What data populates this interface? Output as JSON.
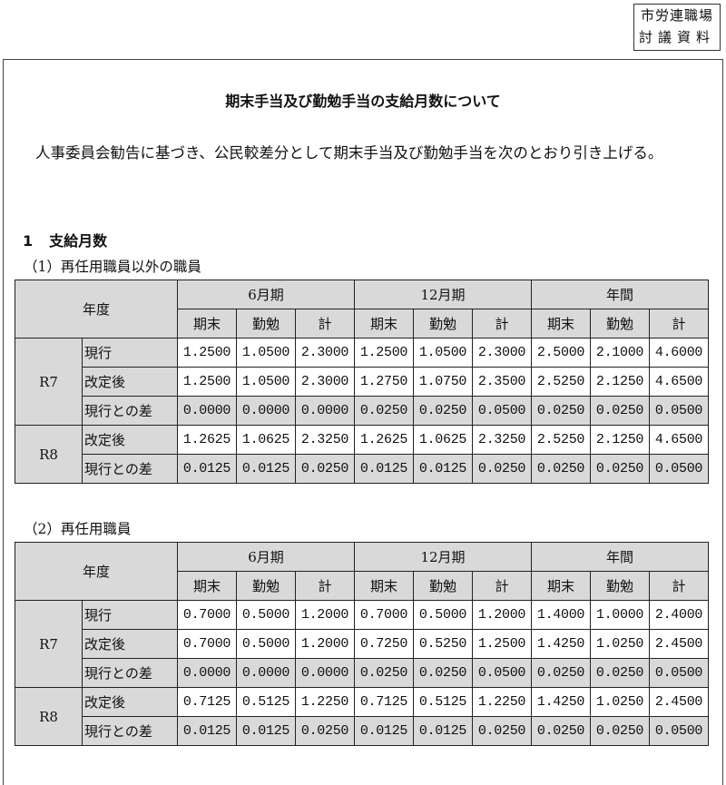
{
  "stamp": {
    "line1": "市労連職場",
    "line2": "討議資料"
  },
  "title": "期末手当及び勤勉手当の支給月数について",
  "paragraph": "人事委員会勧告に基づき、公民較差分として期末手当及び勤勉手当を次のとおり引き上げる。",
  "section": {
    "number": "1",
    "label": "支給月数"
  },
  "header": {
    "year": "年度",
    "periods": [
      "6月期",
      "12月期",
      "年間"
    ],
    "subcols": [
      "期末",
      "勤勉",
      "計"
    ]
  },
  "tables": [
    {
      "caption": "（1）再任用職員以外の職員",
      "groups": [
        {
          "year": "R7",
          "rows": [
            {
              "label": "現行",
              "shaded": false,
              "values": [
                "1.2500",
                "1.0500",
                "2.3000",
                "1.2500",
                "1.0500",
                "2.3000",
                "2.5000",
                "2.1000",
                "4.6000"
              ]
            },
            {
              "label": "改定後",
              "shaded": false,
              "values": [
                "1.2500",
                "1.0500",
                "2.3000",
                "1.2750",
                "1.0750",
                "2.3500",
                "2.5250",
                "2.1250",
                "4.6500"
              ]
            },
            {
              "label": "現行との差",
              "shaded": true,
              "values": [
                "0.0000",
                "0.0000",
                "0.0000",
                "0.0250",
                "0.0250",
                "0.0500",
                "0.0250",
                "0.0250",
                "0.0500"
              ]
            }
          ]
        },
        {
          "year": "R8",
          "rows": [
            {
              "label": "改定後",
              "shaded": false,
              "values": [
                "1.2625",
                "1.0625",
                "2.3250",
                "1.2625",
                "1.0625",
                "2.3250",
                "2.5250",
                "2.1250",
                "4.6500"
              ]
            },
            {
              "label": "現行との差",
              "shaded": true,
              "values": [
                "0.0125",
                "0.0125",
                "0.0250",
                "0.0125",
                "0.0125",
                "0.0250",
                "0.0250",
                "0.0250",
                "0.0500"
              ]
            }
          ]
        }
      ]
    },
    {
      "caption": "（2）再任用職員",
      "groups": [
        {
          "year": "R7",
          "rows": [
            {
              "label": "現行",
              "shaded": false,
              "values": [
                "0.7000",
                "0.5000",
                "1.2000",
                "0.7000",
                "0.5000",
                "1.2000",
                "1.4000",
                "1.0000",
                "2.4000"
              ]
            },
            {
              "label": "改定後",
              "shaded": false,
              "values": [
                "0.7000",
                "0.5000",
                "1.2000",
                "0.7250",
                "0.5250",
                "1.2500",
                "1.4250",
                "1.0250",
                "2.4500"
              ]
            },
            {
              "label": "現行との差",
              "shaded": true,
              "values": [
                "0.0000",
                "0.0000",
                "0.0000",
                "0.0250",
                "0.0250",
                "0.0500",
                "0.0250",
                "0.0250",
                "0.0500"
              ]
            }
          ]
        },
        {
          "year": "R8",
          "rows": [
            {
              "label": "改定後",
              "shaded": false,
              "values": [
                "0.7125",
                "0.5125",
                "1.2250",
                "0.7125",
                "0.5125",
                "1.2250",
                "1.4250",
                "1.0250",
                "2.4500"
              ]
            },
            {
              "label": "現行との差",
              "shaded": true,
              "values": [
                "0.0125",
                "0.0125",
                "0.0250",
                "0.0125",
                "0.0125",
                "0.0250",
                "0.0250",
                "0.0250",
                "0.0500"
              ]
            }
          ]
        }
      ]
    }
  ]
}
